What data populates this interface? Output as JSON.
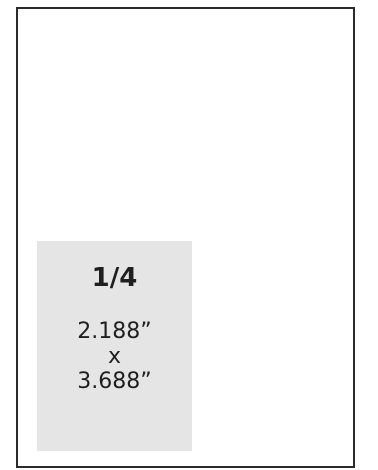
{
  "ad": {
    "size_label": "1/4",
    "width": "2.188”",
    "separator": "x",
    "height": "3.688”"
  }
}
